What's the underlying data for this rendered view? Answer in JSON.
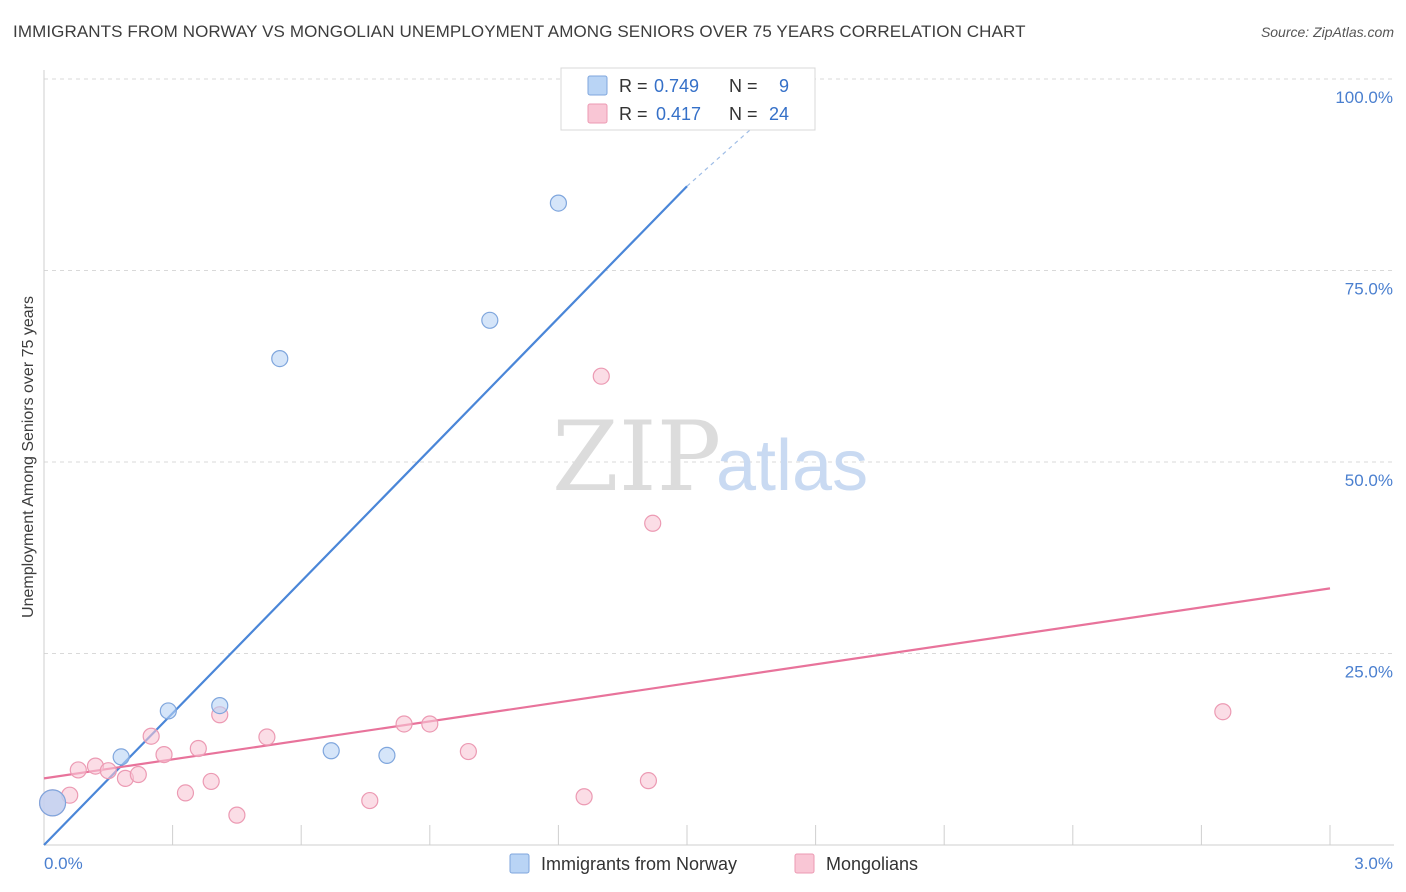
{
  "header": {
    "title": "IMMIGRANTS FROM NORWAY VS MONGOLIAN UNEMPLOYMENT AMONG SENIORS OVER 75 YEARS CORRELATION CHART",
    "source": "Source: ZipAtlas.com"
  },
  "watermark": {
    "zip": "ZIP",
    "atlas": "atlas"
  },
  "legend": {
    "rows": [
      {
        "r_label": "R =",
        "r_value": "0.749",
        "n_label": "N =",
        "n_value": "9",
        "color": "#b9d4f5",
        "stroke": "#7fa6dd"
      },
      {
        "r_label": "R =",
        "r_value": "0.417",
        "n_label": "N =",
        "n_value": "24",
        "color": "#f9c6d5",
        "stroke": "#ec9ab3"
      }
    ]
  },
  "bottom_legend": {
    "items": [
      {
        "label": "Immigrants from Norway",
        "color": "#b9d4f5",
        "stroke": "#7fa6dd"
      },
      {
        "label": "Mongolians",
        "color": "#f9c6d5",
        "stroke": "#ec9ab3"
      }
    ]
  },
  "chart_data": {
    "type": "scatter",
    "title": "IMMIGRANTS FROM NORWAY VS MONGOLIAN UNEMPLOYMENT AMONG SENIORS OVER 75 YEARS CORRELATION CHART",
    "xlabel": "",
    "ylabel": "Unemployment Among Seniors over 75 years",
    "xlim": [
      0,
      3.0
    ],
    "ylim": [
      0,
      100
    ],
    "x_tick_labels": [
      "0.0%",
      "3.0%"
    ],
    "y_tick_labels": [
      "100.0%",
      "75.0%",
      "50.0%",
      "25.0%"
    ],
    "y_ticks": [
      100,
      75,
      50,
      25
    ],
    "grid": true,
    "legend_position": "top-center",
    "series": [
      {
        "name": "Immigrants from Norway",
        "color": "#4a86d8",
        "points": [
          {
            "x": 0.02,
            "y": 5.5,
            "big": true
          },
          {
            "x": 0.18,
            "y": 11.5
          },
          {
            "x": 0.29,
            "y": 17.5
          },
          {
            "x": 0.41,
            "y": 18.2
          },
          {
            "x": 0.55,
            "y": 63.5
          },
          {
            "x": 0.67,
            "y": 12.3
          },
          {
            "x": 0.8,
            "y": 11.7
          },
          {
            "x": 1.04,
            "y": 68.5
          },
          {
            "x": 1.2,
            "y": 83.8
          }
        ],
        "trend": {
          "x0": 0.0,
          "y0": 0.0,
          "x1": 1.5,
          "y1": 86.0,
          "dash_x1": 1.7,
          "dash_y1": 96.0
        }
      },
      {
        "name": "Mongolians",
        "color": "#e8739b",
        "points": [
          {
            "x": 0.02,
            "y": 5.5,
            "big": true
          },
          {
            "x": 0.06,
            "y": 6.5
          },
          {
            "x": 0.08,
            "y": 9.8
          },
          {
            "x": 0.12,
            "y": 10.3
          },
          {
            "x": 0.15,
            "y": 9.7
          },
          {
            "x": 0.19,
            "y": 8.7
          },
          {
            "x": 0.22,
            "y": 9.2
          },
          {
            "x": 0.25,
            "y": 14.2
          },
          {
            "x": 0.28,
            "y": 11.8
          },
          {
            "x": 0.33,
            "y": 6.8
          },
          {
            "x": 0.36,
            "y": 12.6
          },
          {
            "x": 0.39,
            "y": 8.3
          },
          {
            "x": 0.41,
            "y": 17.0
          },
          {
            "x": 0.45,
            "y": 3.9
          },
          {
            "x": 0.52,
            "y": 14.1
          },
          {
            "x": 0.76,
            "y": 5.8
          },
          {
            "x": 0.84,
            "y": 15.8
          },
          {
            "x": 0.9,
            "y": 15.8
          },
          {
            "x": 0.99,
            "y": 12.2
          },
          {
            "x": 1.26,
            "y": 6.3
          },
          {
            "x": 1.3,
            "y": 61.2
          },
          {
            "x": 1.41,
            "y": 8.4
          },
          {
            "x": 1.42,
            "y": 42.0
          },
          {
            "x": 2.75,
            "y": 17.4
          }
        ],
        "trend": {
          "x0": 0.0,
          "y0": 8.7,
          "x1": 3.0,
          "y1": 33.5
        }
      }
    ]
  }
}
